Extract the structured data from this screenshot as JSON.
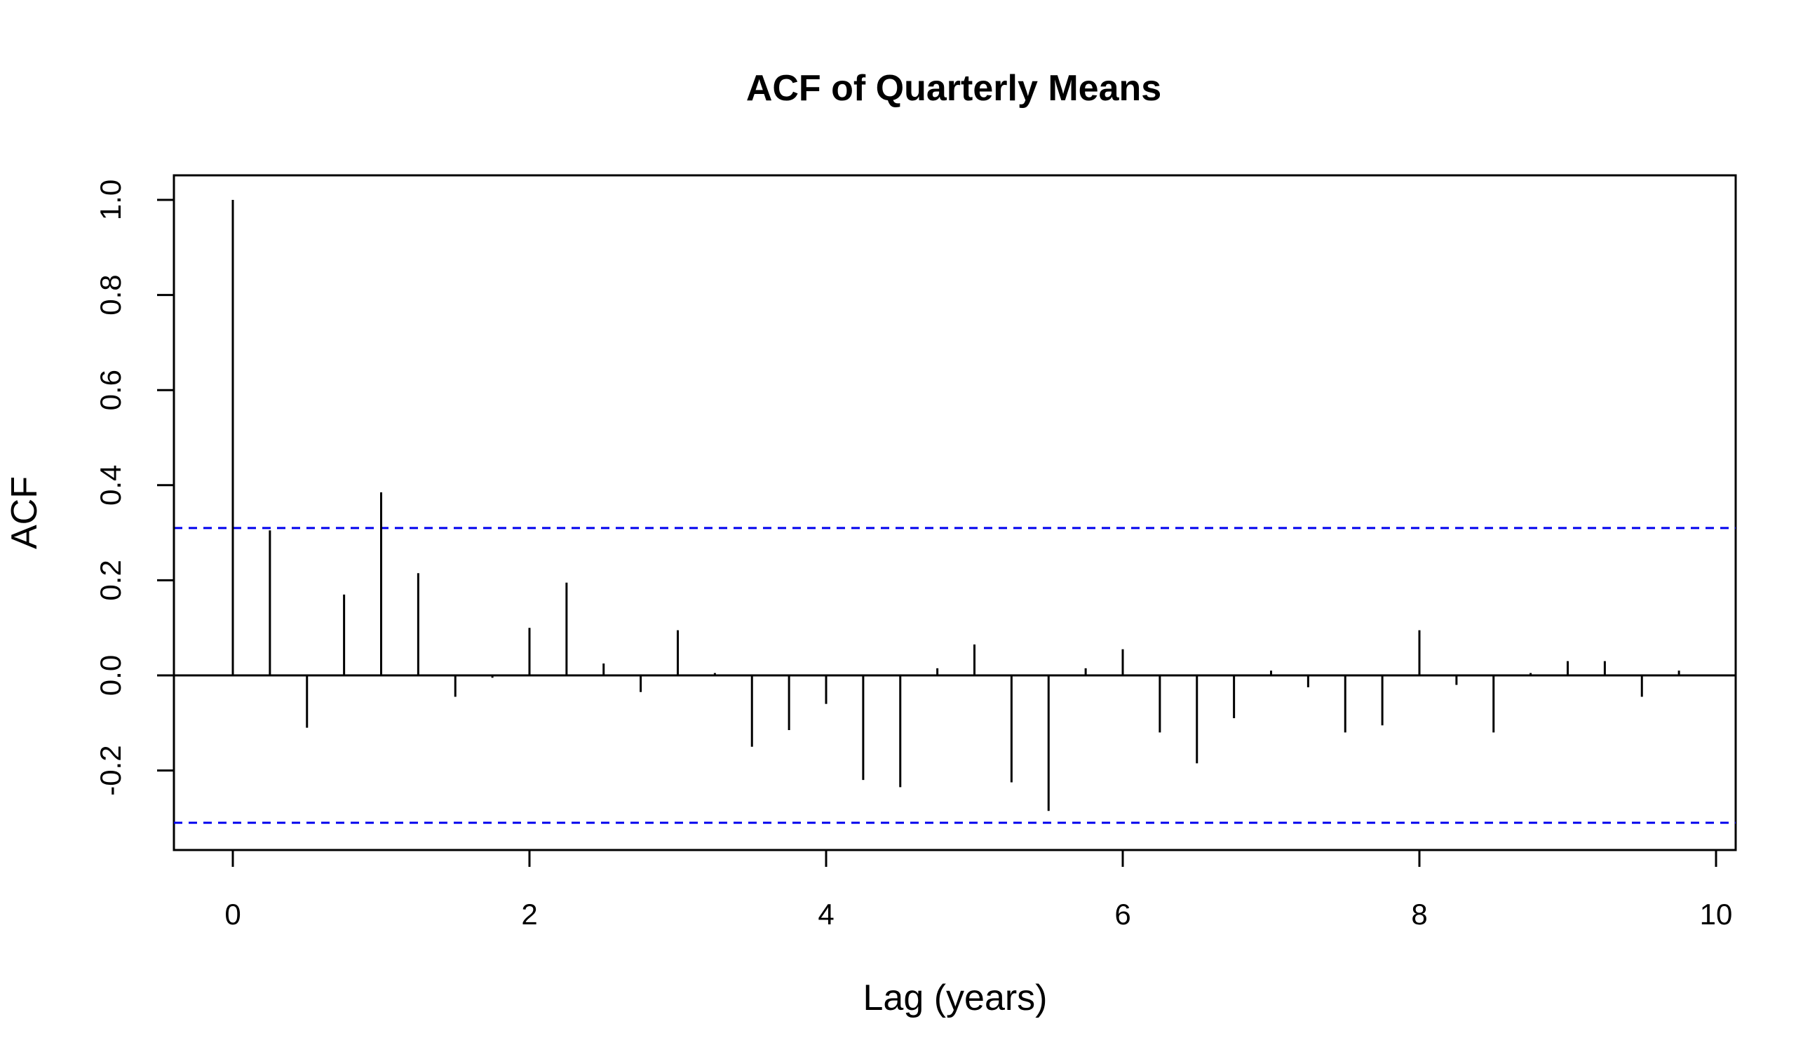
{
  "chart_data": {
    "type": "bar",
    "title": "ACF of Quarterly Means",
    "xlabel": "Lag (years)",
    "ylabel": "ACF",
    "xlim": [
      -0.2,
      10.1
    ],
    "ylim": [
      -0.35,
      1.05
    ],
    "x_ticks": [
      0,
      2,
      4,
      6,
      8,
      10
    ],
    "x_tick_labels": [
      "0",
      "2",
      "4",
      "6",
      "8",
      "10"
    ],
    "y_ticks": [
      -0.2,
      0.0,
      0.2,
      0.4,
      0.6,
      0.8,
      1.0
    ],
    "y_tick_labels": [
      "-0.2",
      "0.0",
      "0.2",
      "0.4",
      "0.6",
      "0.8",
      "1.0"
    ],
    "confidence_bound": 0.31,
    "colors": {
      "bars": "#000000",
      "bounds": "#0000ee",
      "zero_line": "#000000"
    },
    "series": [
      {
        "x": [
          0,
          0.25,
          0.5,
          0.75,
          1.0,
          1.25,
          1.5,
          1.75,
          2.0,
          2.25,
          2.5,
          2.75,
          3.0,
          3.25,
          3.5,
          3.75,
          4.0,
          4.25,
          4.5,
          4.75,
          5.0,
          5.25,
          5.5,
          5.75,
          6.0,
          6.25,
          6.5,
          6.75,
          7.0,
          7.25,
          7.5,
          7.75,
          8.0,
          8.25,
          8.5,
          8.75,
          9.0,
          9.25,
          9.5,
          9.75
        ],
        "values": [
          1.0,
          0.305,
          -0.11,
          0.17,
          0.385,
          0.215,
          -0.045,
          -0.005,
          0.1,
          0.195,
          0.025,
          -0.035,
          0.095,
          0.005,
          -0.15,
          -0.115,
          -0.06,
          -0.22,
          -0.235,
          0.015,
          0.065,
          -0.225,
          -0.285,
          0.015,
          0.055,
          -0.12,
          -0.185,
          -0.09,
          0.01,
          -0.025,
          -0.12,
          -0.105,
          0.095,
          -0.02,
          -0.12,
          0.005,
          0.03,
          0.03,
          -0.045,
          0.01
        ]
      }
    ]
  }
}
